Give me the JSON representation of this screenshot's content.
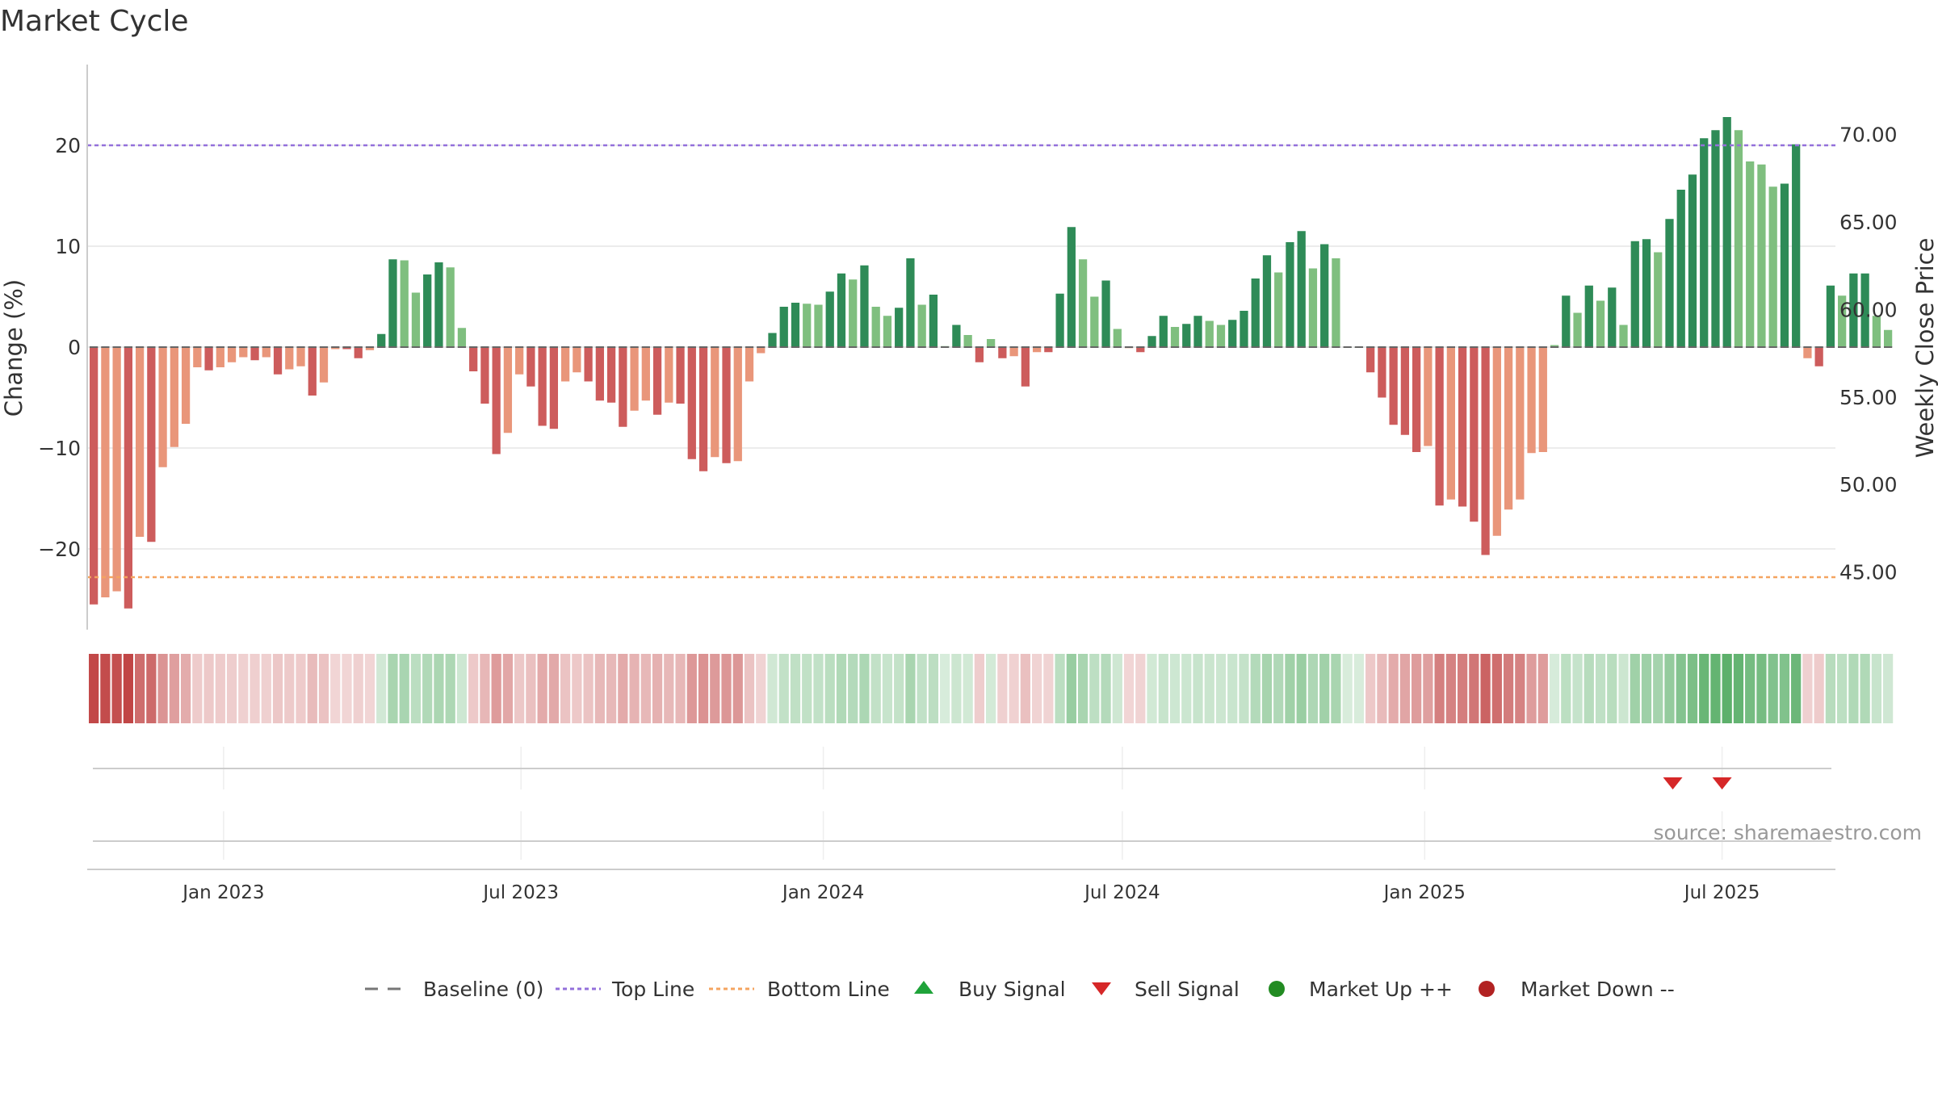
{
  "chart_data": {
    "type": "bar",
    "title": "Market Cycle",
    "ylabel": "Change (%)",
    "y2label": "Weekly Close Price",
    "source": "source: sharemaestro.com",
    "ylim": [
      -28,
      28
    ],
    "y2lim": [
      41.7,
      74.0
    ],
    "yticks": [
      -20,
      -10,
      0,
      10,
      20
    ],
    "y2ticks": [
      "45.00",
      "50.00",
      "55.00",
      "60.00",
      "65.00",
      "70.00"
    ],
    "top_line": 20,
    "bottom_line": -22.8,
    "x_start": "2022-10-10",
    "x_end": "2025-09-08",
    "xticks": [
      {
        "label": "Jan 2023",
        "date": "2023-01-01"
      },
      {
        "label": "Jul 2023",
        "date": "2023-07-01"
      },
      {
        "label": "Jan 2024",
        "date": "2024-01-01"
      },
      {
        "label": "Jul 2024",
        "date": "2024-07-01"
      },
      {
        "label": "Jan 2025",
        "date": "2025-01-01"
      },
      {
        "label": "Jul 2025",
        "date": "2025-07-01"
      }
    ],
    "first_week": "2022-10-14",
    "values": [
      -25.5,
      -24.8,
      -24.2,
      -25.9,
      -18.8,
      -19.3,
      -11.9,
      -9.9,
      -7.6,
      -2,
      -2.3,
      -2,
      -1.5,
      -1,
      -1.3,
      -1,
      -2.7,
      -2.2,
      -1.9,
      -4.8,
      -3.5,
      -0.2,
      -0.2,
      -1.1,
      -0.3,
      1.3,
      8.7,
      8.6,
      5.4,
      7.2,
      8.4,
      7.9,
      1.9,
      -2.4,
      -5.6,
      -10.6,
      -8.5,
      -2.7,
      -3.9,
      -7.8,
      -8.1,
      -3.4,
      -2.5,
      -3.4,
      -5.3,
      -5.5,
      -7.9,
      -6.3,
      -5.3,
      -6.7,
      -5.5,
      -5.6,
      -11.1,
      -12.3,
      -10.9,
      -11.5,
      -11.3,
      -3.4,
      -0.6,
      1.4,
      4,
      4.4,
      4.3,
      4.2,
      5.5,
      7.3,
      6.7,
      8.1,
      4,
      3.1,
      3.9,
      8.8,
      4.2,
      5.2,
      0.1,
      2.2,
      1.2,
      -1.5,
      0.8,
      -1.1,
      -0.9,
      -3.9,
      -0.5,
      -0.5,
      5.3,
      11.9,
      8.7,
      5,
      6.6,
      1.8,
      -0.1,
      -0.5,
      1.1,
      3.1,
      2,
      2.3,
      3.1,
      2.6,
      2.2,
      2.7,
      3.6,
      6.8,
      9.1,
      7.4,
      10.4,
      11.5,
      7.8,
      10.2,
      8.8,
      0,
      0,
      -2.5,
      -5,
      -7.7,
      -8.7,
      -10.4,
      -9.8,
      -15.7,
      -15.1,
      -15.8,
      -17.3,
      -20.6,
      -18.7,
      -16.1,
      -15.1,
      -10.5,
      -10.4,
      0.2,
      5.1,
      3.4,
      6.1,
      4.6,
      5.9,
      2.2,
      10.5,
      10.7,
      9.4,
      12.7,
      15.6,
      17.1,
      20.7,
      21.5,
      22.8,
      21.5,
      18.4,
      18.1,
      15.9,
      16.2,
      20.1,
      -1.1,
      -1.9,
      6.1,
      5.1,
      7.3,
      7.3,
      3.1,
      1.7
    ],
    "colors": {
      "up_strong": "#2e8b57",
      "up_light": "#7fbf7f",
      "down_strong": "#cd5c5c",
      "down_light": "#e9967a",
      "top_line": "#9370db",
      "bottom_line": "#f4a460",
      "baseline": "#555555",
      "buy": "#1fa33a",
      "sell": "#d62728",
      "market_up": "#228b22",
      "market_down": "#b22222"
    },
    "sell_signals": [
      "2025-06-01",
      "2025-07-01"
    ],
    "buy_signals": [],
    "legend": [
      {
        "label": "Baseline (0)",
        "kind": "dash"
      },
      {
        "label": "Top Line",
        "kind": "dot-purple"
      },
      {
        "label": "Bottom Line",
        "kind": "dot-orange"
      },
      {
        "label": "Buy Signal",
        "kind": "tri-up"
      },
      {
        "label": "Sell Signal",
        "kind": "tri-down"
      },
      {
        "label": "Market Up ++",
        "kind": "circle-green"
      },
      {
        "label": "Market Down --",
        "kind": "circle-red"
      }
    ]
  }
}
